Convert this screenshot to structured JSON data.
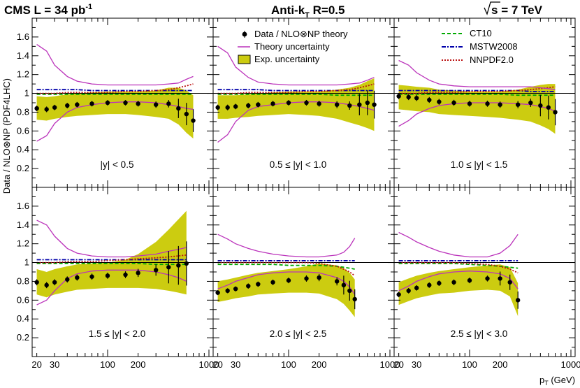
{
  "header": {
    "left_prefix": "CMS  L = 34 pb",
    "left_sup": "-1",
    "center_prefix": "Anti-k",
    "center_sub": "T",
    "center_suffix": " R=0.5",
    "right_prefix": "s",
    "right_suffix": " = 7 TeV"
  },
  "axes": {
    "ylabel": "Data / NLO⊗NP (PDF4LHC)",
    "xlabel_main": "p",
    "xlabel_sub": "T",
    "xlabel_unit": " (GeV)",
    "x_scale": "log",
    "xlim": [
      18,
      1100
    ],
    "ylim": [
      0,
      1.8
    ],
    "yticks": [
      0.2,
      0.4,
      0.6,
      0.8,
      1,
      1.2,
      1.4,
      1.6
    ],
    "ytick_labels": [
      "0.2",
      "0.4",
      "0.6",
      "0.8",
      "1",
      "1.2",
      "1.4",
      "1.6"
    ],
    "xticks_labeled": [
      20,
      30,
      100,
      200,
      1000
    ],
    "xtick_labels": [
      "20",
      "30",
      "100",
      "200",
      "1000"
    ]
  },
  "legend_left": {
    "data": "Data / NLO⊗NP theory",
    "theory": "Theory uncertainty",
    "exp": "Exp. uncertainty"
  },
  "legend_right": {
    "ct10": "CT10",
    "mstw": "MSTW2008",
    "nnpdf": "NNPDF2.0"
  },
  "colors": {
    "band": "#cccc10",
    "theory": "#bb33bb",
    "ct10": "#00aa00",
    "mstw": "#0000aa",
    "nnpdf": "#bb1111"
  },
  "chart_data": {
    "type": "scatter",
    "panels": [
      {
        "label": "|y| < 0.5",
        "x": [
          20,
          25,
          30,
          40,
          50,
          70,
          100,
          150,
          200,
          300,
          400,
          500,
          600,
          700
        ],
        "y": [
          0.84,
          0.83,
          0.85,
          0.87,
          0.88,
          0.89,
          0.9,
          0.9,
          0.89,
          0.88,
          0.89,
          0.84,
          0.78,
          0.71
        ],
        "exp_low": [
          0.72,
          0.71,
          0.73,
          0.75,
          0.76,
          0.77,
          0.78,
          0.78,
          0.77,
          0.75,
          0.73,
          0.67,
          0.58,
          0.52
        ],
        "exp_high": [
          0.97,
          0.96,
          0.97,
          0.99,
          1.0,
          1.01,
          1.02,
          1.02,
          1.02,
          1.03,
          1.06,
          1.06,
          1.03,
          0.98
        ],
        "theory_up": [
          1.52,
          1.45,
          1.3,
          1.18,
          1.13,
          1.1,
          1.09,
          1.09,
          1.09,
          1.09,
          1.1,
          1.11,
          1.15,
          1.18
        ],
        "theory_down": [
          0.49,
          0.55,
          0.68,
          0.8,
          0.85,
          0.88,
          0.9,
          0.91,
          0.91,
          0.9,
          0.88,
          0.86,
          0.84,
          0.83
        ],
        "ct10": [
          0.99,
          0.99,
          0.99,
          0.99,
          0.99,
          0.99,
          0.99,
          0.99,
          0.99,
          0.99,
          0.99,
          0.99,
          0.99,
          0.99
        ],
        "mstw": [
          1.04,
          1.04,
          1.04,
          1.04,
          1.04,
          1.03,
          1.03,
          1.03,
          1.03,
          1.03,
          1.03,
          1.03,
          1.03,
          1.03
        ],
        "nnpdf": [
          1.0,
          1.0,
          1.0,
          1.01,
          1.01,
          1.01,
          1.01,
          1.02,
          1.02,
          1.03,
          1.04,
          1.06,
          1.08,
          1.1
        ]
      },
      {
        "label": "0.5 ≤ |y| < 1.0",
        "x": [
          20,
          25,
          30,
          40,
          50,
          70,
          100,
          150,
          200,
          300,
          400,
          500,
          600,
          700
        ],
        "y": [
          0.85,
          0.85,
          0.86,
          0.87,
          0.88,
          0.89,
          0.9,
          0.9,
          0.89,
          0.88,
          0.87,
          0.88,
          0.9,
          0.88
        ],
        "exp_low": [
          0.73,
          0.73,
          0.74,
          0.75,
          0.76,
          0.77,
          0.78,
          0.77,
          0.76,
          0.73,
          0.69,
          0.66,
          0.63,
          0.6
        ],
        "exp_high": [
          0.98,
          0.98,
          0.98,
          0.99,
          1.0,
          1.01,
          1.02,
          1.02,
          1.02,
          1.04,
          1.06,
          1.09,
          1.13,
          1.16
        ],
        "theory_up": [
          1.5,
          1.43,
          1.28,
          1.17,
          1.12,
          1.1,
          1.09,
          1.09,
          1.09,
          1.09,
          1.1,
          1.11,
          1.14,
          1.17
        ],
        "theory_down": [
          0.48,
          0.56,
          0.7,
          0.82,
          0.86,
          0.88,
          0.9,
          0.91,
          0.91,
          0.9,
          0.88,
          0.86,
          0.84,
          0.82
        ],
        "ct10": [
          0.99,
          0.99,
          0.99,
          0.99,
          0.99,
          0.99,
          0.99,
          0.99,
          0.99,
          0.98,
          0.98,
          0.98,
          0.98,
          0.98
        ],
        "mstw": [
          1.04,
          1.04,
          1.04,
          1.04,
          1.04,
          1.03,
          1.03,
          1.03,
          1.03,
          1.03,
          1.03,
          1.03,
          1.03,
          1.03
        ],
        "nnpdf": [
          1.0,
          1.0,
          1.0,
          1.01,
          1.01,
          1.01,
          1.01,
          1.02,
          1.02,
          1.03,
          1.04,
          1.06,
          1.08,
          1.1
        ]
      },
      {
        "label": "1.0 ≤ |y| < 1.5",
        "x": [
          20,
          25,
          30,
          40,
          50,
          70,
          100,
          150,
          200,
          300,
          400,
          500,
          600,
          700
        ],
        "y": [
          0.97,
          0.96,
          0.95,
          0.93,
          0.91,
          0.9,
          0.89,
          0.89,
          0.88,
          0.88,
          0.9,
          0.87,
          0.85,
          0.8
        ],
        "exp_low": [
          0.83,
          0.82,
          0.81,
          0.8,
          0.78,
          0.77,
          0.76,
          0.75,
          0.74,
          0.72,
          0.7,
          0.66,
          0.62,
          0.57
        ],
        "exp_high": [
          1.09,
          1.08,
          1.07,
          1.06,
          1.04,
          1.03,
          1.02,
          1.02,
          1.02,
          1.04,
          1.07,
          1.09,
          1.1,
          1.1
        ],
        "theory_up": [
          1.35,
          1.3,
          1.22,
          1.14,
          1.1,
          1.08,
          1.07,
          1.07,
          1.07,
          1.07,
          1.07,
          1.06,
          1.05,
          1.04
        ],
        "theory_down": [
          0.65,
          0.71,
          0.78,
          0.84,
          0.87,
          0.89,
          0.9,
          0.9,
          0.9,
          0.89,
          0.88,
          0.86,
          0.84,
          0.81
        ],
        "ct10": [
          0.99,
          0.99,
          0.99,
          0.99,
          0.99,
          0.99,
          0.99,
          0.99,
          0.99,
          0.98,
          0.98,
          0.98,
          0.98,
          0.98
        ],
        "mstw": [
          1.03,
          1.03,
          1.03,
          1.03,
          1.03,
          1.03,
          1.03,
          1.03,
          1.03,
          1.03,
          1.02,
          1.02,
          1.02,
          1.02
        ],
        "nnpdf": [
          1.0,
          1.0,
          1.0,
          1.01,
          1.01,
          1.01,
          1.02,
          1.02,
          1.02,
          1.03,
          1.04,
          1.05,
          1.06,
          1.07
        ]
      },
      {
        "label": "1.5 ≤ |y| < 2.0",
        "x": [
          20,
          25,
          30,
          40,
          50,
          70,
          100,
          150,
          200,
          300,
          400,
          500,
          600
        ],
        "y": [
          0.79,
          0.76,
          0.79,
          0.82,
          0.84,
          0.85,
          0.86,
          0.87,
          0.89,
          0.92,
          0.95,
          0.97,
          0.99
        ],
        "exp_low": [
          0.66,
          0.63,
          0.66,
          0.69,
          0.71,
          0.72,
          0.73,
          0.73,
          0.73,
          0.72,
          0.7,
          0.68,
          0.66
        ],
        "exp_high": [
          0.93,
          0.9,
          0.93,
          0.96,
          0.98,
          0.99,
          1.0,
          1.03,
          1.09,
          1.22,
          1.35,
          1.46,
          1.55
        ],
        "theory_up": [
          1.45,
          1.4,
          1.28,
          1.15,
          1.1,
          1.07,
          1.06,
          1.06,
          1.07,
          1.09,
          1.12,
          1.14,
          1.16
        ],
        "theory_down": [
          0.55,
          0.6,
          0.7,
          0.83,
          0.88,
          0.91,
          0.92,
          0.92,
          0.92,
          0.9,
          0.87,
          0.84,
          0.8
        ],
        "ct10": [
          0.99,
          0.99,
          0.99,
          0.99,
          0.99,
          0.99,
          0.99,
          0.99,
          0.99,
          0.98,
          0.98,
          0.98,
          0.98
        ],
        "mstw": [
          1.03,
          1.03,
          1.03,
          1.03,
          1.03,
          1.03,
          1.03,
          1.03,
          1.03,
          1.03,
          1.03,
          1.03,
          1.03
        ],
        "nnpdf": [
          1.0,
          1.0,
          1.0,
          1.01,
          1.01,
          1.01,
          1.02,
          1.03,
          1.04,
          1.05,
          1.06,
          1.07,
          1.08
        ]
      },
      {
        "label": "2.0 ≤ |y| < 2.5",
        "x": [
          20,
          25,
          30,
          40,
          50,
          70,
          100,
          150,
          200,
          300,
          350,
          400,
          450
        ],
        "y": [
          0.68,
          0.7,
          0.72,
          0.75,
          0.77,
          0.79,
          0.81,
          0.83,
          0.84,
          0.8,
          0.76,
          0.7,
          0.61
        ],
        "exp_low": [
          0.58,
          0.6,
          0.62,
          0.64,
          0.66,
          0.67,
          0.68,
          0.68,
          0.67,
          0.61,
          0.56,
          0.49,
          0.42
        ],
        "exp_high": [
          0.8,
          0.82,
          0.84,
          0.87,
          0.89,
          0.91,
          0.93,
          0.96,
          0.99,
          0.97,
          0.94,
          0.89,
          0.82
        ],
        "theory_up": [
          1.3,
          1.25,
          1.2,
          1.15,
          1.12,
          1.09,
          1.07,
          1.06,
          1.06,
          1.08,
          1.11,
          1.17,
          1.26
        ],
        "theory_down": [
          0.72,
          0.76,
          0.8,
          0.84,
          0.87,
          0.89,
          0.9,
          0.9,
          0.89,
          0.84,
          0.8,
          0.74,
          0.66
        ],
        "ct10": [
          0.98,
          0.98,
          0.98,
          0.98,
          0.98,
          0.98,
          0.97,
          0.97,
          0.97,
          0.96,
          0.95,
          0.94,
          0.93
        ],
        "mstw": [
          1.02,
          1.02,
          1.02,
          1.02,
          1.02,
          1.02,
          1.02,
          1.02,
          1.02,
          1.02,
          1.02,
          1.02,
          1.02
        ],
        "nnpdf": [
          1.0,
          1.0,
          1.0,
          1.0,
          1.0,
          1.0,
          1.0,
          1.0,
          0.99,
          0.96,
          0.93,
          0.9,
          0.86
        ]
      },
      {
        "label": "2.5 ≤ |y| < 3.0",
        "x": [
          20,
          25,
          30,
          40,
          50,
          70,
          100,
          150,
          200,
          250,
          300
        ],
        "y": [
          0.66,
          0.7,
          0.73,
          0.76,
          0.78,
          0.79,
          0.81,
          0.83,
          0.83,
          0.79,
          0.6
        ],
        "exp_low": [
          0.55,
          0.59,
          0.62,
          0.65,
          0.67,
          0.68,
          0.7,
          0.71,
          0.7,
          0.64,
          0.43
        ],
        "exp_high": [
          0.79,
          0.83,
          0.86,
          0.89,
          0.91,
          0.93,
          0.95,
          0.97,
          0.98,
          0.95,
          0.78
        ],
        "theory_up": [
          1.32,
          1.27,
          1.22,
          1.16,
          1.12,
          1.08,
          1.06,
          1.06,
          1.1,
          1.18,
          1.3
        ],
        "theory_down": [
          0.7,
          0.75,
          0.8,
          0.85,
          0.88,
          0.9,
          0.91,
          0.9,
          0.88,
          0.83,
          0.72
        ],
        "ct10": [
          0.99,
          0.99,
          0.99,
          0.99,
          0.99,
          0.99,
          0.98,
          0.97,
          0.96,
          0.95,
          0.94
        ],
        "mstw": [
          1.02,
          1.02,
          1.02,
          1.02,
          1.02,
          1.02,
          1.02,
          1.02,
          1.02,
          1.02,
          1.02
        ],
        "nnpdf": [
          1.0,
          1.0,
          1.0,
          1.0,
          1.0,
          1.0,
          0.99,
          0.98,
          0.96,
          0.93,
          0.89
        ]
      }
    ]
  }
}
